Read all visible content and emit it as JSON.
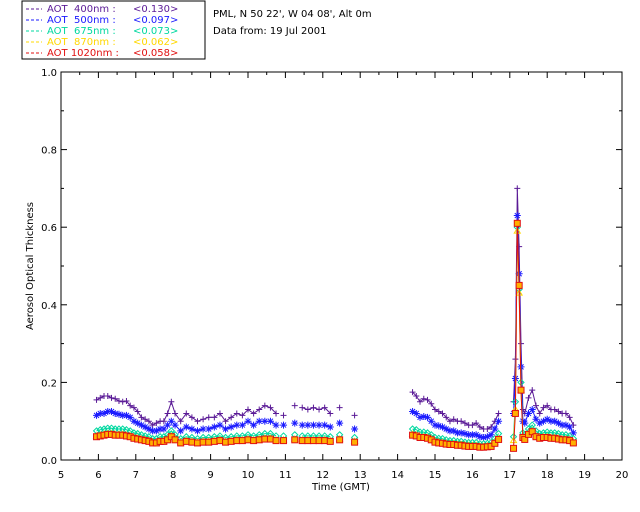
{
  "chart_data": {
    "type": "scatter",
    "title_lines": [
      "PML, N 50 22', W 04 08', Alt 0m",
      "Data from: 19 Jul 2001"
    ],
    "xlabel": "Time (GMT)",
    "ylabel": "Aerosol Optical Thickness",
    "xlim": [
      5,
      20
    ],
    "ylim": [
      0.0,
      1.0
    ],
    "xticks": [
      5,
      6,
      7,
      8,
      9,
      10,
      11,
      12,
      13,
      14,
      15,
      16,
      17,
      18,
      19,
      20
    ],
    "yticks": [
      0.0,
      0.2,
      0.4,
      0.6,
      0.8,
      1.0
    ],
    "ytick_labels": [
      "0.0",
      "0.2",
      "0.4",
      "0.6",
      "0.8",
      "1.0"
    ],
    "legend_position": "top-left",
    "x": [
      5.95,
      6.05,
      6.15,
      6.25,
      6.35,
      6.45,
      6.55,
      6.65,
      6.75,
      6.85,
      6.95,
      7.05,
      7.15,
      7.25,
      7.35,
      7.45,
      7.55,
      7.65,
      7.75,
      7.85,
      7.95,
      8.05,
      8.2,
      8.35,
      8.5,
      8.65,
      8.8,
      8.95,
      9.1,
      9.25,
      9.4,
      9.55,
      9.7,
      9.85,
      10.0,
      10.15,
      10.3,
      10.45,
      10.6,
      10.75,
      10.95,
      11.25,
      11.45,
      11.6,
      11.75,
      11.9,
      12.05,
      12.2,
      12.45,
      12.85,
      14.4,
      14.5,
      14.6,
      14.7,
      14.8,
      14.9,
      15.0,
      15.1,
      15.2,
      15.3,
      15.4,
      15.5,
      15.6,
      15.7,
      15.8,
      15.9,
      16.0,
      16.1,
      16.2,
      16.3,
      16.4,
      16.5,
      16.6,
      16.7,
      17.1,
      17.15,
      17.2,
      17.25,
      17.3,
      17.35,
      17.4,
      17.5,
      17.6,
      17.7,
      17.8,
      17.9,
      18.0,
      18.1,
      18.2,
      18.3,
      18.4,
      18.5,
      18.6,
      18.7
    ],
    "series": [
      {
        "name": "AOT  400nm",
        "legend_label": "AOT  400nm : ",
        "mean_label": "<0.130>",
        "color": "#5a1a96",
        "marker": "plus",
        "values": [
          0.155,
          0.16,
          0.165,
          0.165,
          0.16,
          0.158,
          0.152,
          0.15,
          0.152,
          0.14,
          0.135,
          0.125,
          0.11,
          0.105,
          0.1,
          0.09,
          0.095,
          0.1,
          0.1,
          0.12,
          0.15,
          0.12,
          0.1,
          0.12,
          0.11,
          0.1,
          0.105,
          0.11,
          0.11,
          0.12,
          0.1,
          0.11,
          0.12,
          0.115,
          0.13,
          0.12,
          0.13,
          0.14,
          0.135,
          0.12,
          0.115,
          0.14,
          0.135,
          0.13,
          0.135,
          0.13,
          0.135,
          0.12,
          0.135,
          0.115,
          0.175,
          0.165,
          0.15,
          0.158,
          0.155,
          0.145,
          0.13,
          0.125,
          0.12,
          0.11,
          0.1,
          0.105,
          0.1,
          0.1,
          0.095,
          0.09,
          0.09,
          0.095,
          0.085,
          0.08,
          0.08,
          0.085,
          0.1,
          0.12,
          0.15,
          0.26,
          0.7,
          0.55,
          0.3,
          0.13,
          0.12,
          0.16,
          0.18,
          0.14,
          0.12,
          0.135,
          0.14,
          0.13,
          0.13,
          0.125,
          0.12,
          0.12,
          0.11,
          0.09
        ]
      },
      {
        "name": "AOT  500nm",
        "legend_label": "AOT  500nm : ",
        "mean_label": "<0.097>",
        "color": "#1a1aff",
        "marker": "asterisk",
        "values": [
          0.115,
          0.12,
          0.12,
          0.125,
          0.125,
          0.12,
          0.118,
          0.115,
          0.115,
          0.11,
          0.1,
          0.095,
          0.09,
          0.085,
          0.08,
          0.075,
          0.075,
          0.08,
          0.08,
          0.09,
          0.1,
          0.09,
          0.075,
          0.085,
          0.08,
          0.075,
          0.08,
          0.08,
          0.085,
          0.09,
          0.08,
          0.085,
          0.09,
          0.09,
          0.1,
          0.09,
          0.1,
          0.1,
          0.1,
          0.09,
          0.09,
          0.095,
          0.09,
          0.09,
          0.09,
          0.09,
          0.09,
          0.085,
          0.095,
          0.08,
          0.125,
          0.12,
          0.11,
          0.112,
          0.11,
          0.1,
          0.09,
          0.088,
          0.085,
          0.08,
          0.075,
          0.075,
          0.07,
          0.07,
          0.068,
          0.065,
          0.065,
          0.065,
          0.06,
          0.058,
          0.06,
          0.065,
          0.08,
          0.1,
          0.12,
          0.21,
          0.63,
          0.48,
          0.24,
          0.1,
          0.095,
          0.12,
          0.13,
          0.105,
          0.095,
          0.1,
          0.105,
          0.1,
          0.1,
          0.095,
          0.09,
          0.09,
          0.085,
          0.07
        ]
      },
      {
        "name": "AOT  675nm",
        "legend_label": "AOT  675nm : ",
        "mean_label": "<0.073>",
        "color": "#00d8a0",
        "marker": "diamond",
        "values": [
          0.075,
          0.078,
          0.08,
          0.082,
          0.082,
          0.08,
          0.08,
          0.08,
          0.078,
          0.075,
          0.07,
          0.068,
          0.065,
          0.062,
          0.06,
          0.055,
          0.055,
          0.06,
          0.06,
          0.065,
          0.075,
          0.065,
          0.055,
          0.06,
          0.058,
          0.055,
          0.058,
          0.058,
          0.06,
          0.062,
          0.058,
          0.06,
          0.062,
          0.062,
          0.065,
          0.062,
          0.065,
          0.068,
          0.068,
          0.062,
          0.062,
          0.065,
          0.062,
          0.062,
          0.062,
          0.062,
          0.062,
          0.06,
          0.065,
          0.058,
          0.08,
          0.078,
          0.072,
          0.072,
          0.07,
          0.065,
          0.058,
          0.056,
          0.055,
          0.052,
          0.05,
          0.05,
          0.048,
          0.048,
          0.046,
          0.045,
          0.045,
          0.045,
          0.042,
          0.042,
          0.043,
          0.045,
          0.055,
          0.068,
          0.06,
          0.15,
          0.6,
          0.44,
          0.2,
          0.07,
          0.065,
          0.08,
          0.09,
          0.075,
          0.068,
          0.07,
          0.072,
          0.07,
          0.07,
          0.068,
          0.065,
          0.065,
          0.062,
          0.055
        ]
      },
      {
        "name": "AOT  870nm",
        "legend_label": "AOT  870nm : ",
        "mean_label": "<0.062>",
        "color": "#ffd800",
        "marker": "triangle",
        "values": [
          0.062,
          0.064,
          0.066,
          0.068,
          0.068,
          0.066,
          0.066,
          0.066,
          0.064,
          0.062,
          0.058,
          0.056,
          0.054,
          0.052,
          0.05,
          0.046,
          0.046,
          0.05,
          0.05,
          0.054,
          0.062,
          0.054,
          0.046,
          0.05,
          0.048,
          0.046,
          0.048,
          0.048,
          0.05,
          0.052,
          0.048,
          0.05,
          0.052,
          0.052,
          0.054,
          0.052,
          0.054,
          0.056,
          0.056,
          0.052,
          0.052,
          0.054,
          0.052,
          0.052,
          0.052,
          0.052,
          0.052,
          0.05,
          0.054,
          0.048,
          0.066,
          0.064,
          0.06,
          0.06,
          0.058,
          0.054,
          0.048,
          0.046,
          0.045,
          0.043,
          0.042,
          0.042,
          0.04,
          0.04,
          0.038,
          0.037,
          0.037,
          0.037,
          0.035,
          0.035,
          0.036,
          0.037,
          0.045,
          0.055,
          0.05,
          0.13,
          0.59,
          0.43,
          0.18,
          0.06,
          0.055,
          0.068,
          0.075,
          0.062,
          0.058,
          0.06,
          0.06,
          0.058,
          0.058,
          0.056,
          0.054,
          0.054,
          0.052,
          0.046
        ]
      },
      {
        "name": "AOT 1020nm",
        "legend_label": "AOT 1020nm : ",
        "mean_label": "<0.058>",
        "color": "#e01010",
        "marker": "square",
        "values": [
          0.06,
          0.062,
          0.064,
          0.066,
          0.066,
          0.064,
          0.064,
          0.064,
          0.062,
          0.06,
          0.056,
          0.054,
          0.052,
          0.05,
          0.048,
          0.044,
          0.044,
          0.048,
          0.048,
          0.052,
          0.06,
          0.052,
          0.044,
          0.048,
          0.046,
          0.044,
          0.046,
          0.046,
          0.048,
          0.05,
          0.046,
          0.048,
          0.05,
          0.05,
          0.052,
          0.05,
          0.052,
          0.054,
          0.054,
          0.05,
          0.05,
          0.052,
          0.05,
          0.05,
          0.05,
          0.05,
          0.05,
          0.048,
          0.052,
          0.046,
          0.064,
          0.062,
          0.058,
          0.058,
          0.056,
          0.052,
          0.046,
          0.044,
          0.043,
          0.041,
          0.04,
          0.04,
          0.038,
          0.038,
          0.036,
          0.035,
          0.035,
          0.035,
          0.033,
          0.033,
          0.034,
          0.035,
          0.043,
          0.053,
          0.03,
          0.12,
          0.61,
          0.45,
          0.18,
          0.058,
          0.053,
          0.066,
          0.073,
          0.06,
          0.056,
          0.058,
          0.058,
          0.056,
          0.056,
          0.054,
          0.052,
          0.052,
          0.05,
          0.044
        ]
      }
    ]
  }
}
